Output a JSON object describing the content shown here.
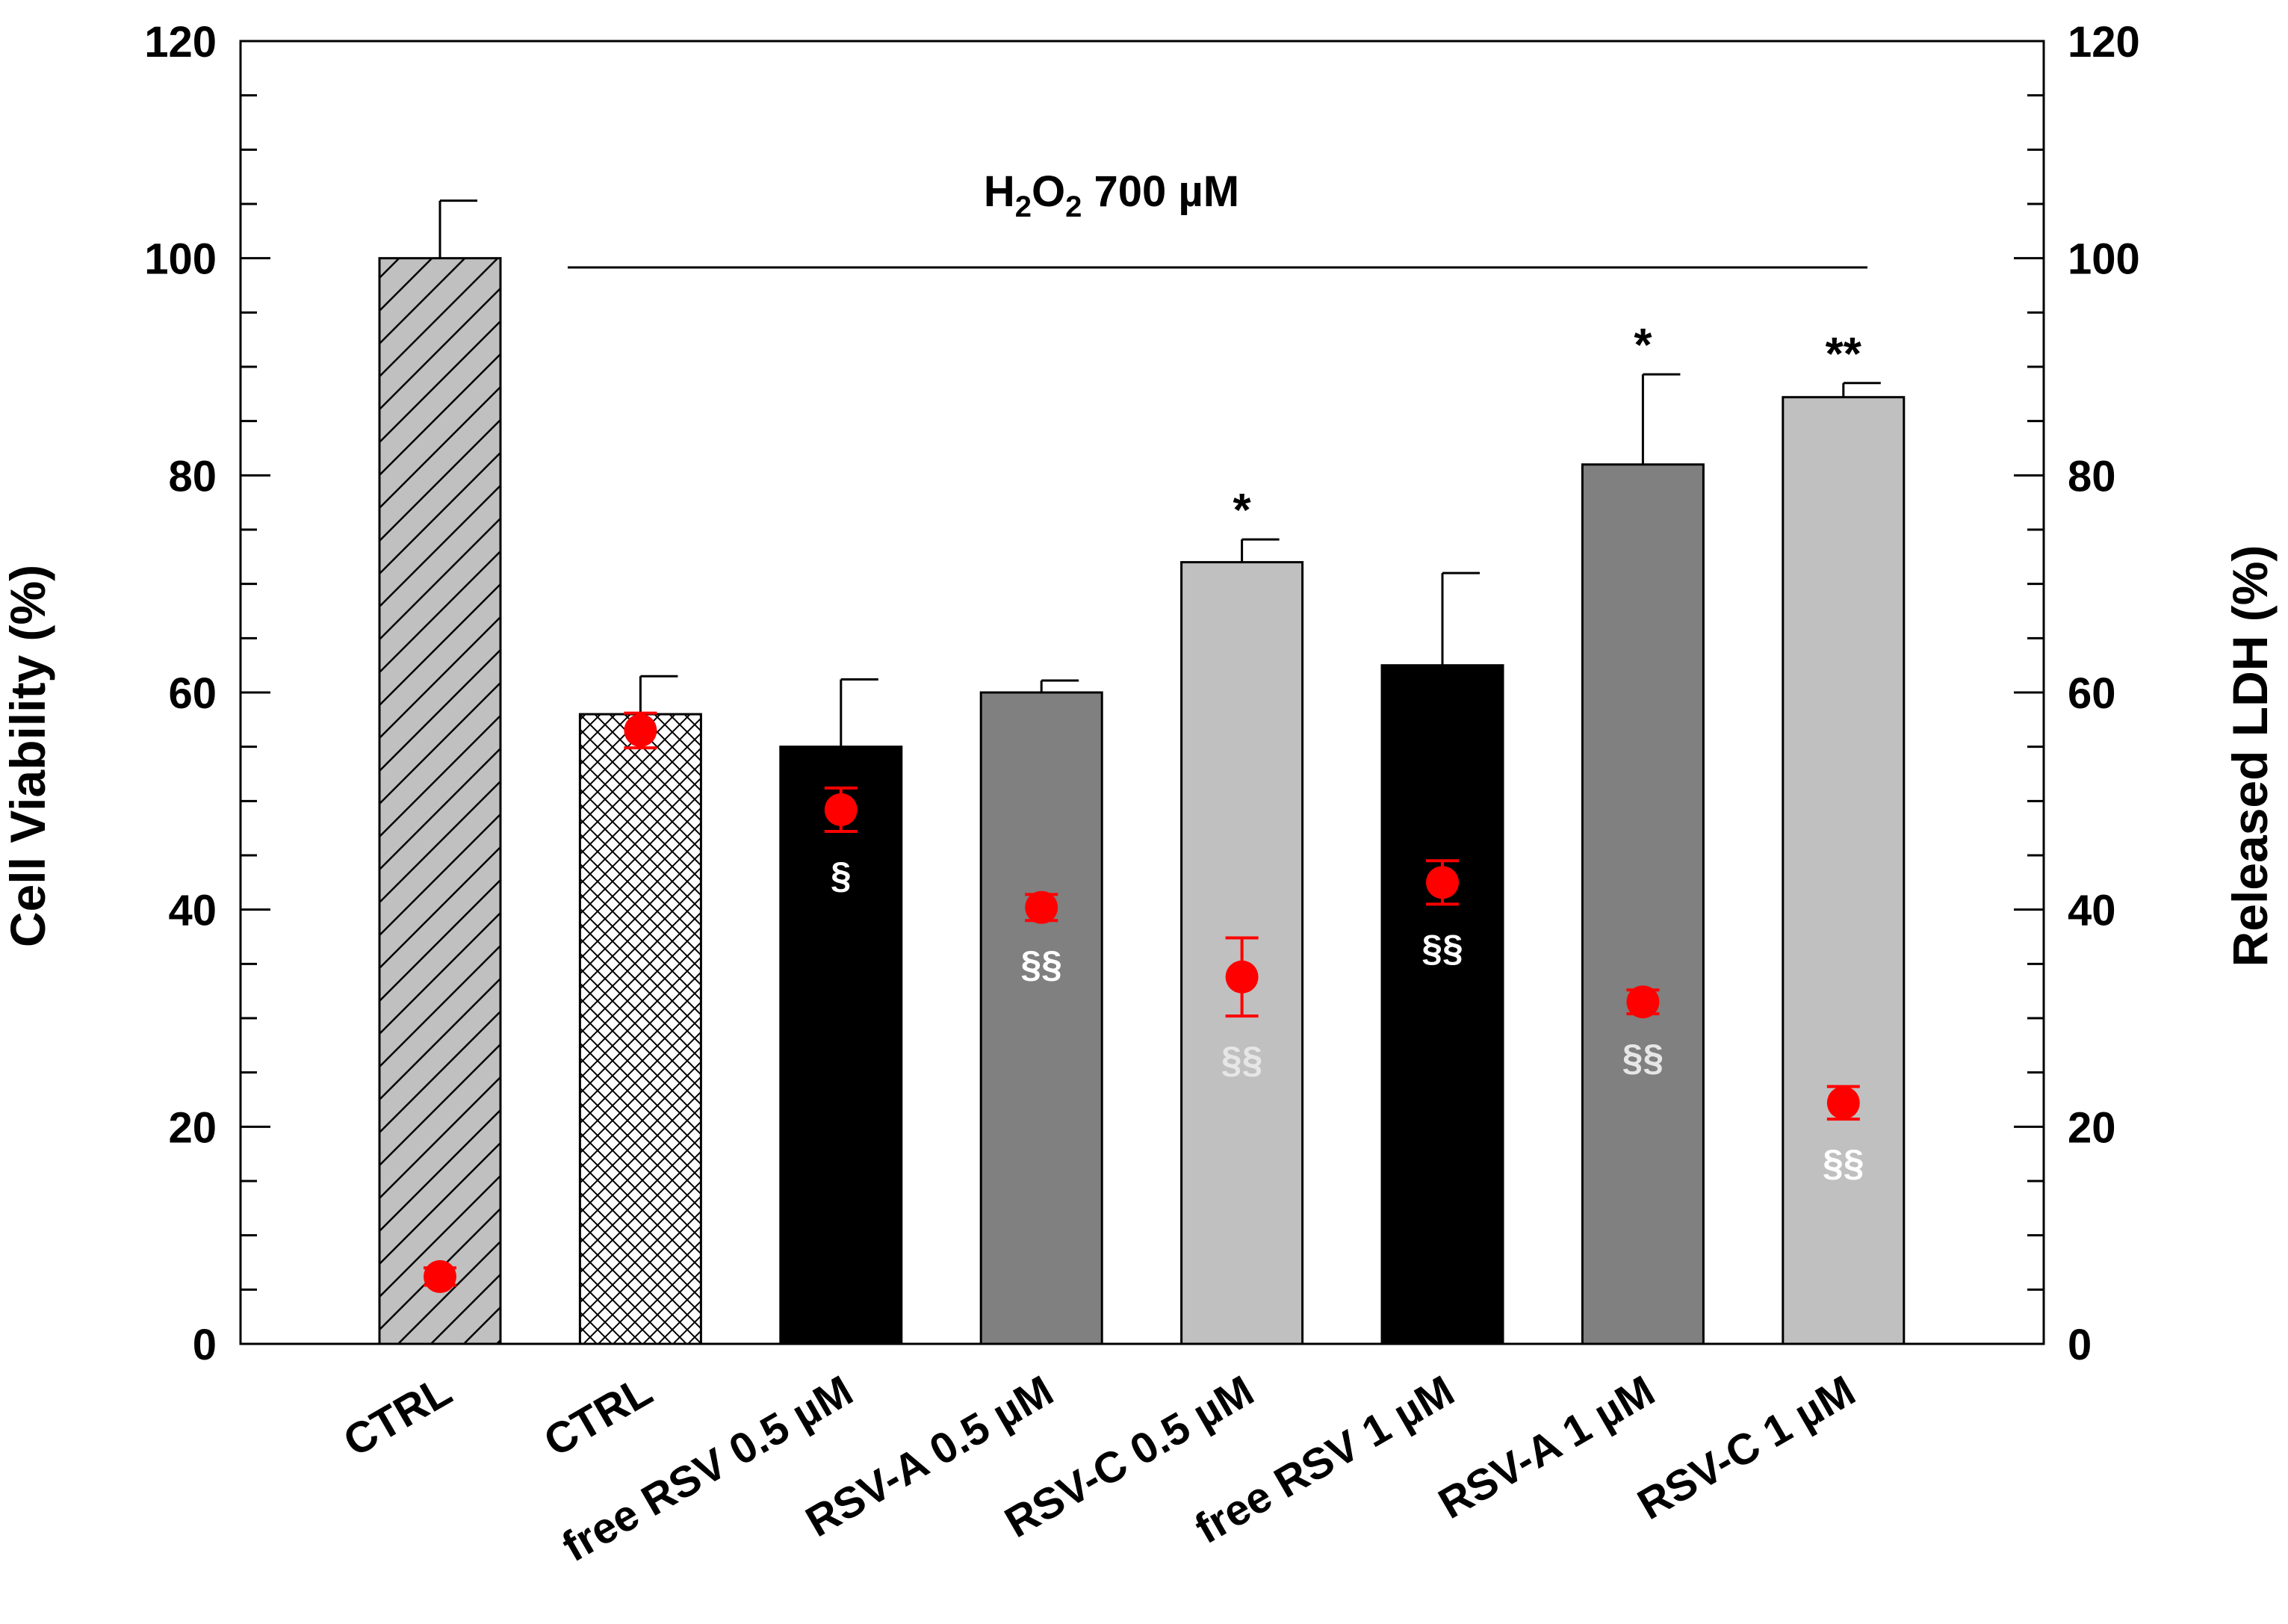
{
  "chart_data": {
    "type": "bar",
    "title": "",
    "treatment_label": {
      "prefix": "H",
      "sub1": "2",
      "mid": "O",
      "sub2": "2",
      "suffix": " 700 µM"
    },
    "categories": [
      "CTRL",
      "CTRL",
      "free RSV 0.5 µM",
      "RSV-A  0.5 µM",
      "RSV-C  0.5 µM",
      "free RSV 1 µM",
      "RSV-A 1 µM",
      "RSV-C  1 µM"
    ],
    "ylabel": "Cell Viability (%)",
    "y2label": "Released LDH (%)",
    "ylim": [
      0,
      120
    ],
    "y2lim": [
      0,
      120
    ],
    "yticks": [
      "0",
      "20",
      "40",
      "60",
      "80",
      "100",
      "120"
    ],
    "y2ticks": [
      "0",
      "20",
      "40",
      "60",
      "80",
      "100",
      "120"
    ],
    "series": [
      {
        "name": "Cell Viability",
        "kind": "bar",
        "values": [
          100,
          58,
          55,
          60,
          72,
          62.5,
          81,
          87.2
        ],
        "errors": [
          5.3,
          3.5,
          6.2,
          1.1,
          2.1,
          8.5,
          8.3,
          1.3
        ],
        "fills": [
          "hatch",
          "crosshatch",
          "#000000",
          "#808080",
          "#c0c0c0",
          "#000000",
          "#808080",
          "#c0c0c0"
        ],
        "annotations": [
          "",
          "",
          "",
          "",
          "*",
          "",
          "*",
          "**"
        ]
      },
      {
        "name": "Released LDH",
        "kind": "point",
        "color": "#ff0000",
        "values": [
          6.2,
          56.5,
          49.2,
          40.2,
          33.8,
          42.5,
          31.5,
          22.2
        ],
        "errors": [
          0.8,
          1.6,
          2.0,
          1.2,
          3.6,
          2.0,
          1.1,
          1.5
        ],
        "annotations": [
          "",
          "",
          "§",
          "§§",
          "§§",
          "§§",
          "§§",
          "§§"
        ],
        "annotation_colors": [
          "#ffffff",
          "#ffffff",
          "#ffffff",
          "#ffffff",
          "#e6e6e6",
          "#ffffff",
          "#e6e6e6",
          "#ffffff"
        ]
      }
    ],
    "colors": {
      "hatch_fill": "#c0c0c0",
      "point": "#ff0000",
      "axis": "#000000"
    },
    "grid": false,
    "legend": "none"
  }
}
